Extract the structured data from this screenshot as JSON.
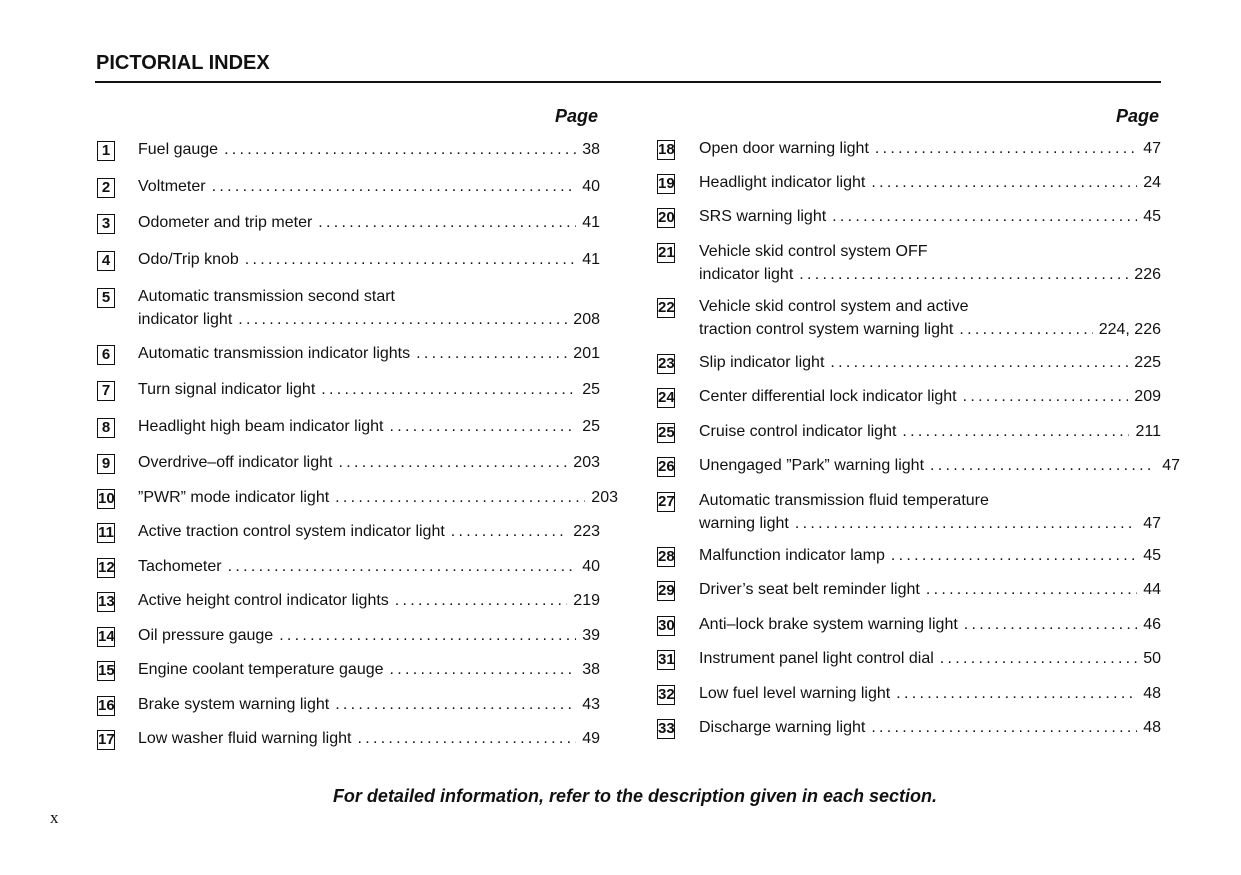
{
  "title": "PICTORIAL INDEX",
  "page_header": "Page",
  "left_entries": [
    {
      "num": "1",
      "lines": [
        "Fuel gauge"
      ],
      "page": "38"
    },
    {
      "num": "2",
      "lines": [
        "Voltmeter"
      ],
      "page": "40"
    },
    {
      "num": "3",
      "lines": [
        "Odometer and trip meter"
      ],
      "page": "41"
    },
    {
      "num": "4",
      "lines": [
        "Odo/Trip knob"
      ],
      "page": "41"
    },
    {
      "num": "5",
      "lines": [
        "Automatic transmission second start",
        "indicator light"
      ],
      "page": "208"
    },
    {
      "num": "6",
      "lines": [
        "Automatic transmission indicator lights"
      ],
      "page": "201"
    },
    {
      "num": "7",
      "lines": [
        "Turn signal indicator light"
      ],
      "page": "25"
    },
    {
      "num": "8",
      "lines": [
        "Headlight high beam indicator light"
      ],
      "page": "25"
    },
    {
      "num": "9",
      "lines": [
        "Overdrive–off indicator light"
      ],
      "page": "203"
    },
    {
      "num": "10",
      "lines": [
        "”PWR” mode indicator light"
      ],
      "page": "203"
    },
    {
      "num": "11",
      "lines": [
        "Active traction control system indicator light"
      ],
      "page": "223"
    },
    {
      "num": "12",
      "lines": [
        "Tachometer"
      ],
      "page": "40"
    },
    {
      "num": "13",
      "lines": [
        "Active height control indicator lights"
      ],
      "page": "219"
    },
    {
      "num": "14",
      "lines": [
        "Oil pressure gauge"
      ],
      "page": "39"
    },
    {
      "num": "15",
      "lines": [
        "Engine coolant temperature gauge"
      ],
      "page": "38"
    },
    {
      "num": "16",
      "lines": [
        "Brake system warning light"
      ],
      "page": "43"
    },
    {
      "num": "17",
      "lines": [
        "Low washer fluid warning light"
      ],
      "page": "49"
    }
  ],
  "right_entries": [
    {
      "num": "18",
      "lines": [
        "Open door warning light"
      ],
      "page": "47"
    },
    {
      "num": "19",
      "lines": [
        "Headlight indicator light"
      ],
      "page": "24"
    },
    {
      "num": "20",
      "lines": [
        "SRS warning light"
      ],
      "page": "45"
    },
    {
      "num": "21",
      "lines": [
        "Vehicle skid control system OFF",
        "indicator light"
      ],
      "page": "226"
    },
    {
      "num": "22",
      "lines": [
        "Vehicle skid control system and active",
        "traction control system warning light"
      ],
      "page": "224, 226"
    },
    {
      "num": "23",
      "lines": [
        "Slip indicator light"
      ],
      "page": "225"
    },
    {
      "num": "24",
      "lines": [
        "Center differential lock indicator light"
      ],
      "page": "209"
    },
    {
      "num": "25",
      "lines": [
        "Cruise control indicator light"
      ],
      "page": "211"
    },
    {
      "num": "26",
      "lines": [
        "Unengaged ”Park” warning light"
      ],
      "page": "47"
    },
    {
      "num": "27",
      "lines": [
        "Automatic transmission fluid temperature",
        "warning light"
      ],
      "page": "47"
    },
    {
      "num": "28",
      "lines": [
        "Malfunction indicator lamp"
      ],
      "page": "45"
    },
    {
      "num": "29",
      "lines": [
        "Driver’s seat belt reminder light"
      ],
      "page": "44"
    },
    {
      "num": "30",
      "lines": [
        "Anti–lock brake system warning light"
      ],
      "page": "46"
    },
    {
      "num": "31",
      "lines": [
        "Instrument panel light control dial"
      ],
      "page": "50"
    },
    {
      "num": "32",
      "lines": [
        "Low fuel level warning light"
      ],
      "page": "48"
    },
    {
      "num": "33",
      "lines": [
        "Discharge warning light"
      ],
      "page": "48"
    }
  ],
  "footer": "For detailed information, refer to the description given in each section.",
  "folio": "x"
}
